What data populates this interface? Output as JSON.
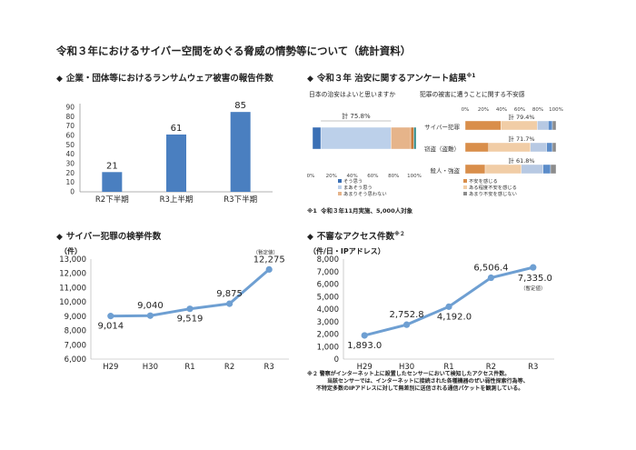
{
  "page": {
    "title": "令和３年におけるサイバー空間をめぐる脅威の情勢等について（統計資料）"
  },
  "sections": {
    "ransomware": {
      "marker": "◆",
      "title": "企業・団体等におけるランサムウェア被害の報告件数"
    },
    "survey": {
      "marker": "◆",
      "title": "令和３年 治安に関するアンケート結果",
      "note_mark": "※1"
    },
    "arrests": {
      "marker": "◆",
      "title": "サイバー犯罪の検挙件数"
    },
    "access": {
      "marker": "◆",
      "title": "不審なアクセス件数",
      "note_mark": "※２"
    }
  },
  "chart_data": [
    {
      "type": "bar",
      "categories": [
        "R2下半期",
        "R3上半期",
        "R3下半期"
      ],
      "values": [
        21,
        61,
        85
      ],
      "ylim": [
        0,
        90
      ],
      "yticks": [
        "0",
        "10",
        "20",
        "30",
        "40",
        "50",
        "60",
        "70",
        "80",
        "90"
      ],
      "color": "#4a7fc0"
    },
    {
      "type": "bar",
      "stacked": true,
      "orientation": "horizontal",
      "left": {
        "question": "日本の治安はよいと思いますか",
        "total_label": "計 75.8%",
        "xticks": [
          "0%",
          "20%",
          "40%",
          "60%",
          "80%",
          "100%"
        ],
        "segments": [
          {
            "name": "そう思う",
            "value": 8.0,
            "color": "#3a6fb5"
          },
          {
            "name": "まあそう思う",
            "value": 67.8,
            "color": "#bcd0ea"
          },
          {
            "name": "あまりそう思わない",
            "value": 19.0,
            "color": "#e6b48a"
          },
          {
            "name": "",
            "value": 3.0,
            "color": "#c97b3a"
          },
          {
            "name": "",
            "value": 2.2,
            "color": "#2f8a8a"
          }
        ]
      },
      "right": {
        "question": "犯罪の被害に遭うことに関する不安感",
        "xticks": [
          "0%",
          "20%",
          "40%",
          "60%",
          "80%",
          "100%"
        ],
        "categories": [
          "サイバー犯罪",
          "窃盗（盗難）",
          "殺人・強盗"
        ],
        "totals": [
          "計 79.4%",
          "計 71.7%",
          "計 61.8%"
        ],
        "series": [
          {
            "name": "不安を感じる",
            "values": [
              39.4,
              25.7,
              22.0
            ],
            "color": "#d98e4a"
          },
          {
            "name": "ある程度不安を感じる",
            "values": [
              40.0,
              46.0,
              39.8
            ],
            "color": "#f1cda6"
          },
          {
            "name": "あまり不安を感じない",
            "values": [
              12.0,
              18.0,
              24.0
            ],
            "color": "#b7c9e3"
          },
          {
            "name": "",
            "values": [
              4.6,
              6.3,
              8.2
            ],
            "color": "#5b8cc9"
          },
          {
            "name": "",
            "values": [
              4.0,
              4.0,
              6.0
            ],
            "color": "#8c8c8c"
          }
        ]
      },
      "legend": [
        {
          "name": "そう思う",
          "color": "#3a6fb5"
        },
        {
          "name": "まあそう思う",
          "color": "#bcd0ea"
        },
        {
          "name": "あまりそう思わない",
          "color": "#e6b48a"
        },
        {
          "name": "不安を感じる",
          "color": "#d98e4a"
        },
        {
          "name": "ある程度不安を感じる",
          "color": "#f1cda6"
        },
        {
          "name": "あまり不安を感じない",
          "color": "#8c8c8c"
        }
      ]
    },
    {
      "type": "line",
      "ylabel": "（件）",
      "categories": [
        "H29",
        "H30",
        "R1",
        "R2",
        "R3"
      ],
      "values": [
        9014,
        9040,
        9519,
        9875,
        12275
      ],
      "labels": [
        "9,014",
        "9,040",
        "9,519",
        "9,875",
        "12,275"
      ],
      "ylim": [
        6000,
        13000
      ],
      "yticks": [
        "6,000",
        "7,000",
        "8,000",
        "9,000",
        "10,000",
        "11,000",
        "12,000",
        "13,000"
      ],
      "annotation": "（暫定値）",
      "color": "#6e9fd2"
    },
    {
      "type": "line",
      "ylabel": "（件/日・IPアドレス）",
      "categories": [
        "H29",
        "H30",
        "R1",
        "R2",
        "R3"
      ],
      "values": [
        1893.0,
        2752.8,
        4192.0,
        6506.4,
        7335.0
      ],
      "labels": [
        "1,893.0",
        "2,752.8",
        "4,192.0",
        "6,506.4",
        "7,335.0"
      ],
      "ylim": [
        0,
        8000
      ],
      "yticks": [
        "0",
        "1,000",
        "2,000",
        "3,000",
        "4,000",
        "5,000",
        "6,000",
        "7,000",
        "8,000"
      ],
      "annotation": "（暫定値）",
      "color": "#6e9fd2"
    }
  ],
  "notes": {
    "note1_mark": "※1",
    "note1": "令和３年11月実施、5,000人対象",
    "note2_mark": "※２",
    "note2_line1": "警察がインターネット上に設置したセンサーにおいて検知したアクセス件数。",
    "note2_line2": "当該センサーでは、インターネットに接続された各種機器のぜい弱性探索行為等、",
    "note2_line3": "不特定多数のIPアドレスに対して無差別に送信される通信パケットを観測している。"
  }
}
